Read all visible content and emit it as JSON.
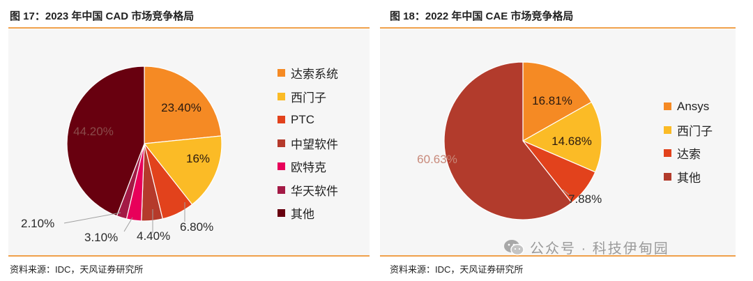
{
  "figures": [
    {
      "title": "图 17：2023 年中国 CAD 市场竞争格局",
      "source": "资料来源：IDC，天风证券研究所"
    },
    {
      "title": "图 18：2022 年中国 CAE 市场竞争格局",
      "source": "资料来源：IDC，天风证券研究所"
    }
  ],
  "watermark": {
    "text": "公众号 · 科技伊甸园",
    "icon": "wechat-icon"
  },
  "colors": {
    "rule": "#f0a04a",
    "plot_background": "#f6f6f6"
  },
  "chart_data": [
    {
      "type": "pie",
      "title": "",
      "start_angle_deg": 0,
      "direction": "clockwise",
      "legend_placement": "right",
      "slices": [
        {
          "label": "达索系统",
          "value": 23.4,
          "data_label": "23.40%",
          "color": "#f58a24",
          "label_position": "inside"
        },
        {
          "label": "西门子",
          "value": 16.0,
          "data_label": "16%",
          "color": "#fbbb26",
          "label_position": "inside"
        },
        {
          "label": "PTC",
          "value": 6.8,
          "data_label": "6.80%",
          "color": "#e2421c",
          "label_position": "outside"
        },
        {
          "label": "中望软件",
          "value": 4.4,
          "data_label": "4.40%",
          "color": "#b53a2b",
          "label_position": "outside"
        },
        {
          "label": "欧特克",
          "value": 3.1,
          "data_label": "3.10%",
          "color": "#e8005a",
          "label_position": "outside"
        },
        {
          "label": "华天软件",
          "value": 2.1,
          "data_label": "2.10%",
          "color": "#a31a45",
          "label_position": "outside"
        },
        {
          "label": "其他",
          "value": 44.2,
          "data_label": "44.20%",
          "color": "#68000f",
          "label_position": "inside"
        }
      ]
    },
    {
      "type": "pie",
      "title": "",
      "start_angle_deg": 0,
      "direction": "clockwise",
      "legend_placement": "right",
      "slices": [
        {
          "label": "Ansys",
          "value": 16.81,
          "data_label": "16.81%",
          "color": "#f58a24",
          "label_position": "inside"
        },
        {
          "label": "西门子",
          "value": 14.68,
          "data_label": "14.68%",
          "color": "#fbbb26",
          "label_position": "inside"
        },
        {
          "label": "达索",
          "value": 7.88,
          "data_label": "7.88%",
          "color": "#e2421c",
          "label_position": "outside"
        },
        {
          "label": "其他",
          "value": 60.63,
          "data_label": "60.63%",
          "color": "#b23b2c",
          "label_position": "inside"
        }
      ]
    }
  ]
}
